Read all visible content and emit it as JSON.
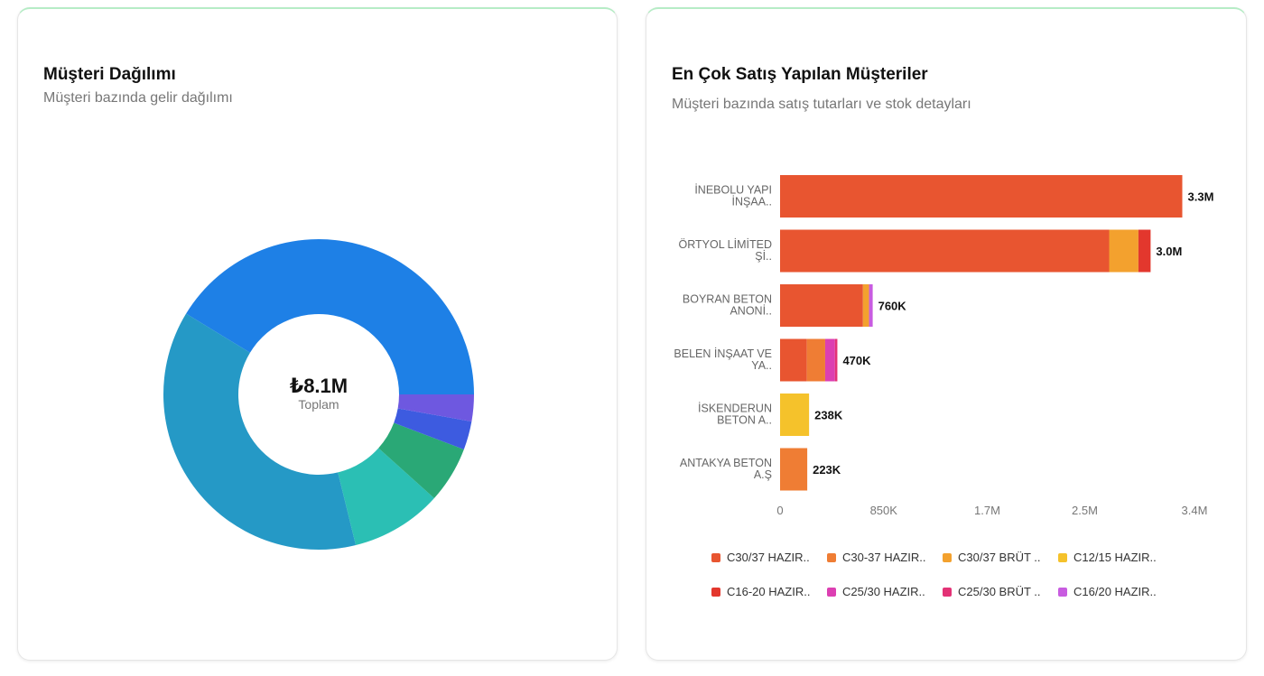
{
  "left_card": {
    "title": "Müşteri Dağılımı",
    "subtitle": "Müşteri bazında gelir dağılımı"
  },
  "right_card": {
    "title": "En Çok Satış Yapılan Müşteriler",
    "subtitle": "Müşteri bazında satış tutarları ve stok detayları"
  },
  "chart_data": [
    {
      "type": "pie",
      "variant": "donut",
      "center_value": "₺8.1M",
      "center_label": "Toplam",
      "slices": [
        {
          "value": 3300000,
          "color": "#1e80e6"
        },
        {
          "value": 3000000,
          "color": "#2599c6"
        },
        {
          "value": 760000,
          "color": "#2bbfb4"
        },
        {
          "value": 470000,
          "color": "#2aa876"
        },
        {
          "value": 238000,
          "color": "#3d5be0"
        },
        {
          "value": 223000,
          "color": "#6e58e0"
        }
      ]
    },
    {
      "type": "bar",
      "orientation": "horizontal",
      "stacked": true,
      "categories": [
        "İNEBOLU YAPI İNŞAA..",
        "ÖRTYOL LİMİTED Şİ..",
        "BOYRAN BETON ANONİ..",
        "BELEN İNŞAAT VE YA..",
        "İSKENDERUN BETON A..",
        "ANTAKYA BETON A.Ş"
      ],
      "category_lines": [
        [
          "İNEBOLU YAPI",
          "İNŞAA.."
        ],
        [
          "ÖRTYOL LİMİTED",
          "Şİ.."
        ],
        [
          "BOYRAN BETON",
          "ANONİ.."
        ],
        [
          "BELEN İNŞAAT VE",
          "YA.."
        ],
        [
          "İSKENDERUN",
          "BETON A.."
        ],
        [
          "ANTAKYA BETON",
          "A.Ş"
        ]
      ],
      "totals_labels": [
        "3.3M",
        "3.0M",
        "760K",
        "470K",
        "238K",
        "223K"
      ],
      "xlim": [
        0,
        3400000
      ],
      "xticks": [
        0,
        850000,
        1700000,
        2500000,
        3400000
      ],
      "xtick_labels": [
        "0",
        "850K",
        "1.7M",
        "2.5M",
        "3.4M"
      ],
      "series": [
        {
          "name": "C30/37 HAZIR..",
          "color": "#e85530",
          "values": [
            3300000,
            2700000,
            680000,
            220000,
            0,
            0
          ]
        },
        {
          "name": "C30-37 HAZIR..",
          "color": "#ef7d34",
          "values": [
            0,
            0,
            0,
            150000,
            0,
            223000
          ]
        },
        {
          "name": "C30/37 BRÜT ..",
          "color": "#f3a12e",
          "values": [
            0,
            240000,
            50000,
            0,
            0,
            0
          ]
        },
        {
          "name": "C12/15 HAZIR..",
          "color": "#f5c22b",
          "values": [
            0,
            0,
            0,
            0,
            238000,
            0
          ]
        },
        {
          "name": "C16-20 HAZIR..",
          "color": "#e3372d",
          "values": [
            0,
            100000,
            0,
            0,
            0,
            0
          ]
        },
        {
          "name": "C25/30 HAZIR..",
          "color": "#dc3fb2",
          "values": [
            0,
            0,
            0,
            80000,
            0,
            0
          ]
        },
        {
          "name": "C25/30 BRÜT ..",
          "color": "#e33276",
          "values": [
            0,
            0,
            0,
            20000,
            0,
            0
          ]
        },
        {
          "name": "C16/20 HAZIR..",
          "color": "#c85ce0",
          "values": [
            0,
            0,
            30000,
            0,
            0,
            0
          ]
        }
      ]
    }
  ]
}
